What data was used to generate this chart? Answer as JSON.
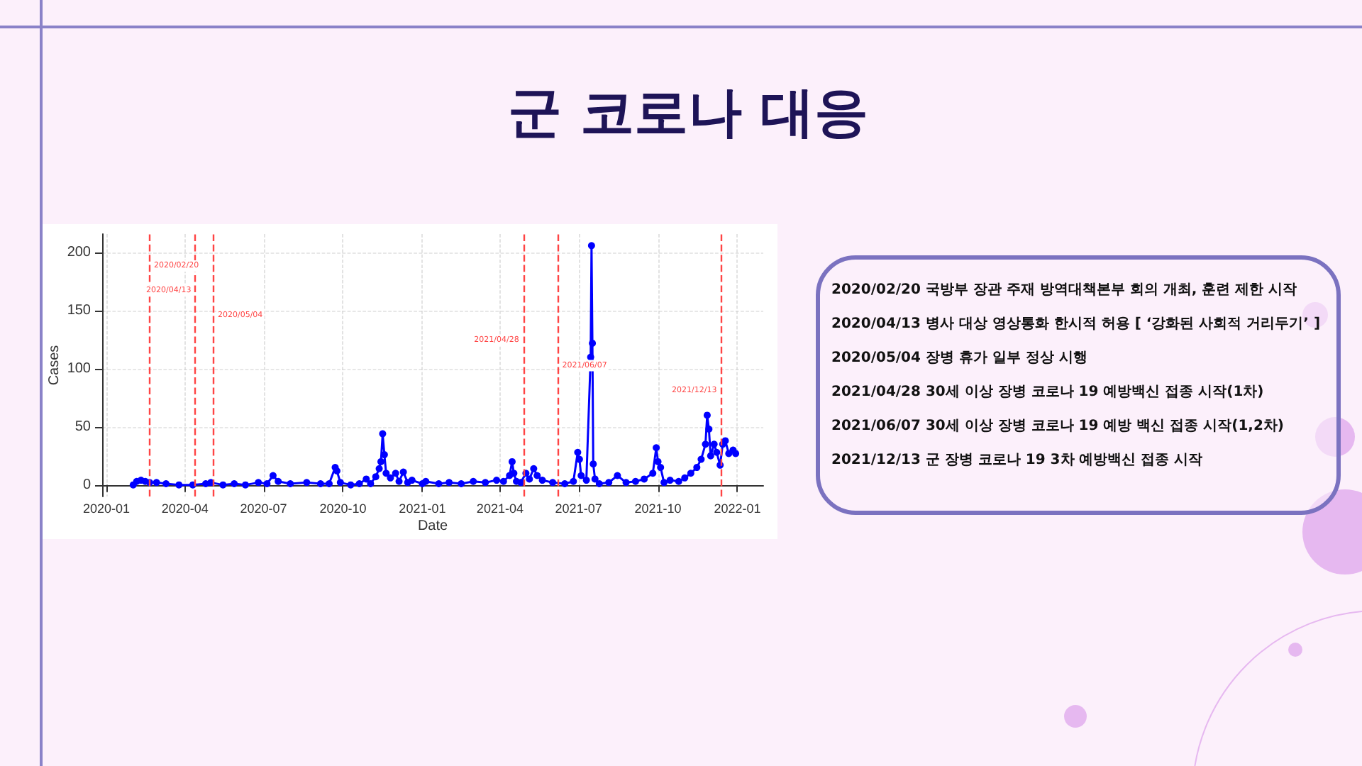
{
  "chart_data": {
    "type": "line",
    "title": "군 코로나 대응",
    "xlabel": "Date",
    "ylabel": "Cases",
    "x": [
      "2020-02-01",
      "2020-02-05",
      "2020-02-10",
      "2020-02-15",
      "2020-02-20",
      "2020-02-28",
      "2020-03-10",
      "2020-03-25",
      "2020-04-10",
      "2020-04-25",
      "2020-05-01",
      "2020-05-15",
      "2020-05-28",
      "2020-06-10",
      "2020-06-25",
      "2020-07-05",
      "2020-07-12",
      "2020-07-18",
      "2020-08-01",
      "2020-08-20",
      "2020-09-05",
      "2020-09-15",
      "2020-09-22",
      "2020-09-24",
      "2020-09-28",
      "2020-10-10",
      "2020-10-20",
      "2020-10-28",
      "2020-11-02",
      "2020-11-08",
      "2020-11-12",
      "2020-11-14",
      "2020-11-16",
      "2020-11-18",
      "2020-11-20",
      "2020-11-25",
      "2020-12-01",
      "2020-12-05",
      "2020-12-10",
      "2020-12-15",
      "2020-12-20",
      "2021-01-01",
      "2021-01-05",
      "2021-01-20",
      "2021-02-01",
      "2021-02-15",
      "2021-03-01",
      "2021-03-15",
      "2021-03-28",
      "2021-04-05",
      "2021-04-12",
      "2021-04-15",
      "2021-04-17",
      "2021-04-20",
      "2021-04-25",
      "2021-05-01",
      "2021-05-05",
      "2021-05-10",
      "2021-05-14",
      "2021-05-20",
      "2021-06-01",
      "2021-06-15",
      "2021-06-25",
      "2021-06-30",
      "2021-07-02",
      "2021-07-04",
      "2021-07-10",
      "2021-07-15",
      "2021-07-16",
      "2021-07-17",
      "2021-07-18",
      "2021-07-20",
      "2021-07-25",
      "2021-08-05",
      "2021-08-15",
      "2021-08-25",
      "2021-09-05",
      "2021-09-15",
      "2021-09-25",
      "2021-09-29",
      "2021-10-01",
      "2021-10-04",
      "2021-10-08",
      "2021-10-15",
      "2021-10-25",
      "2021-11-01",
      "2021-11-08",
      "2021-11-15",
      "2021-11-20",
      "2021-11-25",
      "2021-11-27",
      "2021-11-29",
      "2021-12-01",
      "2021-12-05",
      "2021-12-08",
      "2021-12-12",
      "2021-12-15",
      "2021-12-18",
      "2021-12-22",
      "2021-12-27",
      "2021-12-30"
    ],
    "series": [
      {
        "color": "#0000ff",
        "values": [
          0,
          3,
          4,
          3,
          2,
          2,
          1,
          0,
          0,
          1,
          2,
          0,
          1,
          0,
          2,
          1,
          8,
          3,
          1,
          2,
          1,
          1,
          15,
          12,
          2,
          0,
          1,
          5,
          1,
          7,
          14,
          20,
          44,
          26,
          10,
          6,
          10,
          3,
          11,
          2,
          4,
          1,
          3,
          1,
          2,
          1,
          3,
          2,
          4,
          3,
          8,
          20,
          10,
          3,
          2,
          10,
          5,
          14,
          8,
          4,
          2,
          1,
          3,
          28,
          22,
          8,
          4,
          110,
          206,
          122,
          18,
          5,
          1,
          2,
          8,
          2,
          3,
          5,
          10,
          32,
          20,
          15,
          2,
          4,
          3,
          6,
          10,
          15,
          22,
          35,
          60,
          48,
          25,
          35,
          28,
          17,
          35,
          38,
          27,
          30,
          27
        ]
      }
    ],
    "xlim": [
      "2019-12-27",
      "2022-01-31"
    ],
    "xticks": [
      {
        "value": "2020-01-01",
        "label": "2020-01"
      },
      {
        "value": "2020-04-01",
        "label": "2020-04"
      },
      {
        "value": "2020-07-01",
        "label": "2020-07"
      },
      {
        "value": "2020-10-01",
        "label": "2020-10"
      },
      {
        "value": "2021-01-01",
        "label": "2021-01"
      },
      {
        "value": "2021-04-01",
        "label": "2021-04"
      },
      {
        "value": "2021-07-01",
        "label": "2021-07"
      },
      {
        "value": "2021-10-01",
        "label": "2021-10"
      },
      {
        "value": "2022-01-01",
        "label": "2022-01"
      }
    ],
    "ylim": [
      -10,
      216
    ],
    "yticks": [
      0,
      50,
      100,
      150,
      200
    ],
    "grid": true,
    "marker": "circle",
    "line_style": "solid",
    "ref_lines": [
      {
        "axis": "x",
        "value": "2020-02-20",
        "label": "2020/02/20",
        "color": "#ff4444",
        "line_style": "dashed"
      },
      {
        "axis": "x",
        "value": "2020-04-13",
        "label": "2020/04/13",
        "color": "#ff4444",
        "line_style": "dashed"
      },
      {
        "axis": "x",
        "value": "2020-05-04",
        "label": "2020/05/04",
        "color": "#ff4444",
        "line_style": "dashed"
      },
      {
        "axis": "x",
        "value": "2021-04-28",
        "label": "2021/04/28",
        "color": "#ff4444",
        "line_style": "dashed"
      },
      {
        "axis": "x",
        "value": "2021-06-07",
        "label": "2021/06/07",
        "color": "#ff4444",
        "line_style": "dashed"
      },
      {
        "axis": "x",
        "value": "2021-12-13",
        "label": "2021/12/13",
        "color": "#ff4444",
        "line_style": "dashed"
      }
    ],
    "annotations": [
      "2020/02/20 국방부 장관 주재 방역대책본부 회의 개최, 훈련 제한 시작",
      "2020/04/13 병사 대상 영상통화 한시적 허용 [ ‘강화된 사회적 거리두기’ ]",
      "2020/05/04 장병 휴가 일부 정상 시행",
      "2021/04/28 30세 이상 장병 코로나 19 예방백신 접종 시작(1차)",
      "2021/06/07 30세 이상 장병 코로나 19 예방 백신 접종 시작(1,2차)",
      "2021/12/13 군 장병 코로나 19 3차 예방백신 접종 시작"
    ]
  }
}
